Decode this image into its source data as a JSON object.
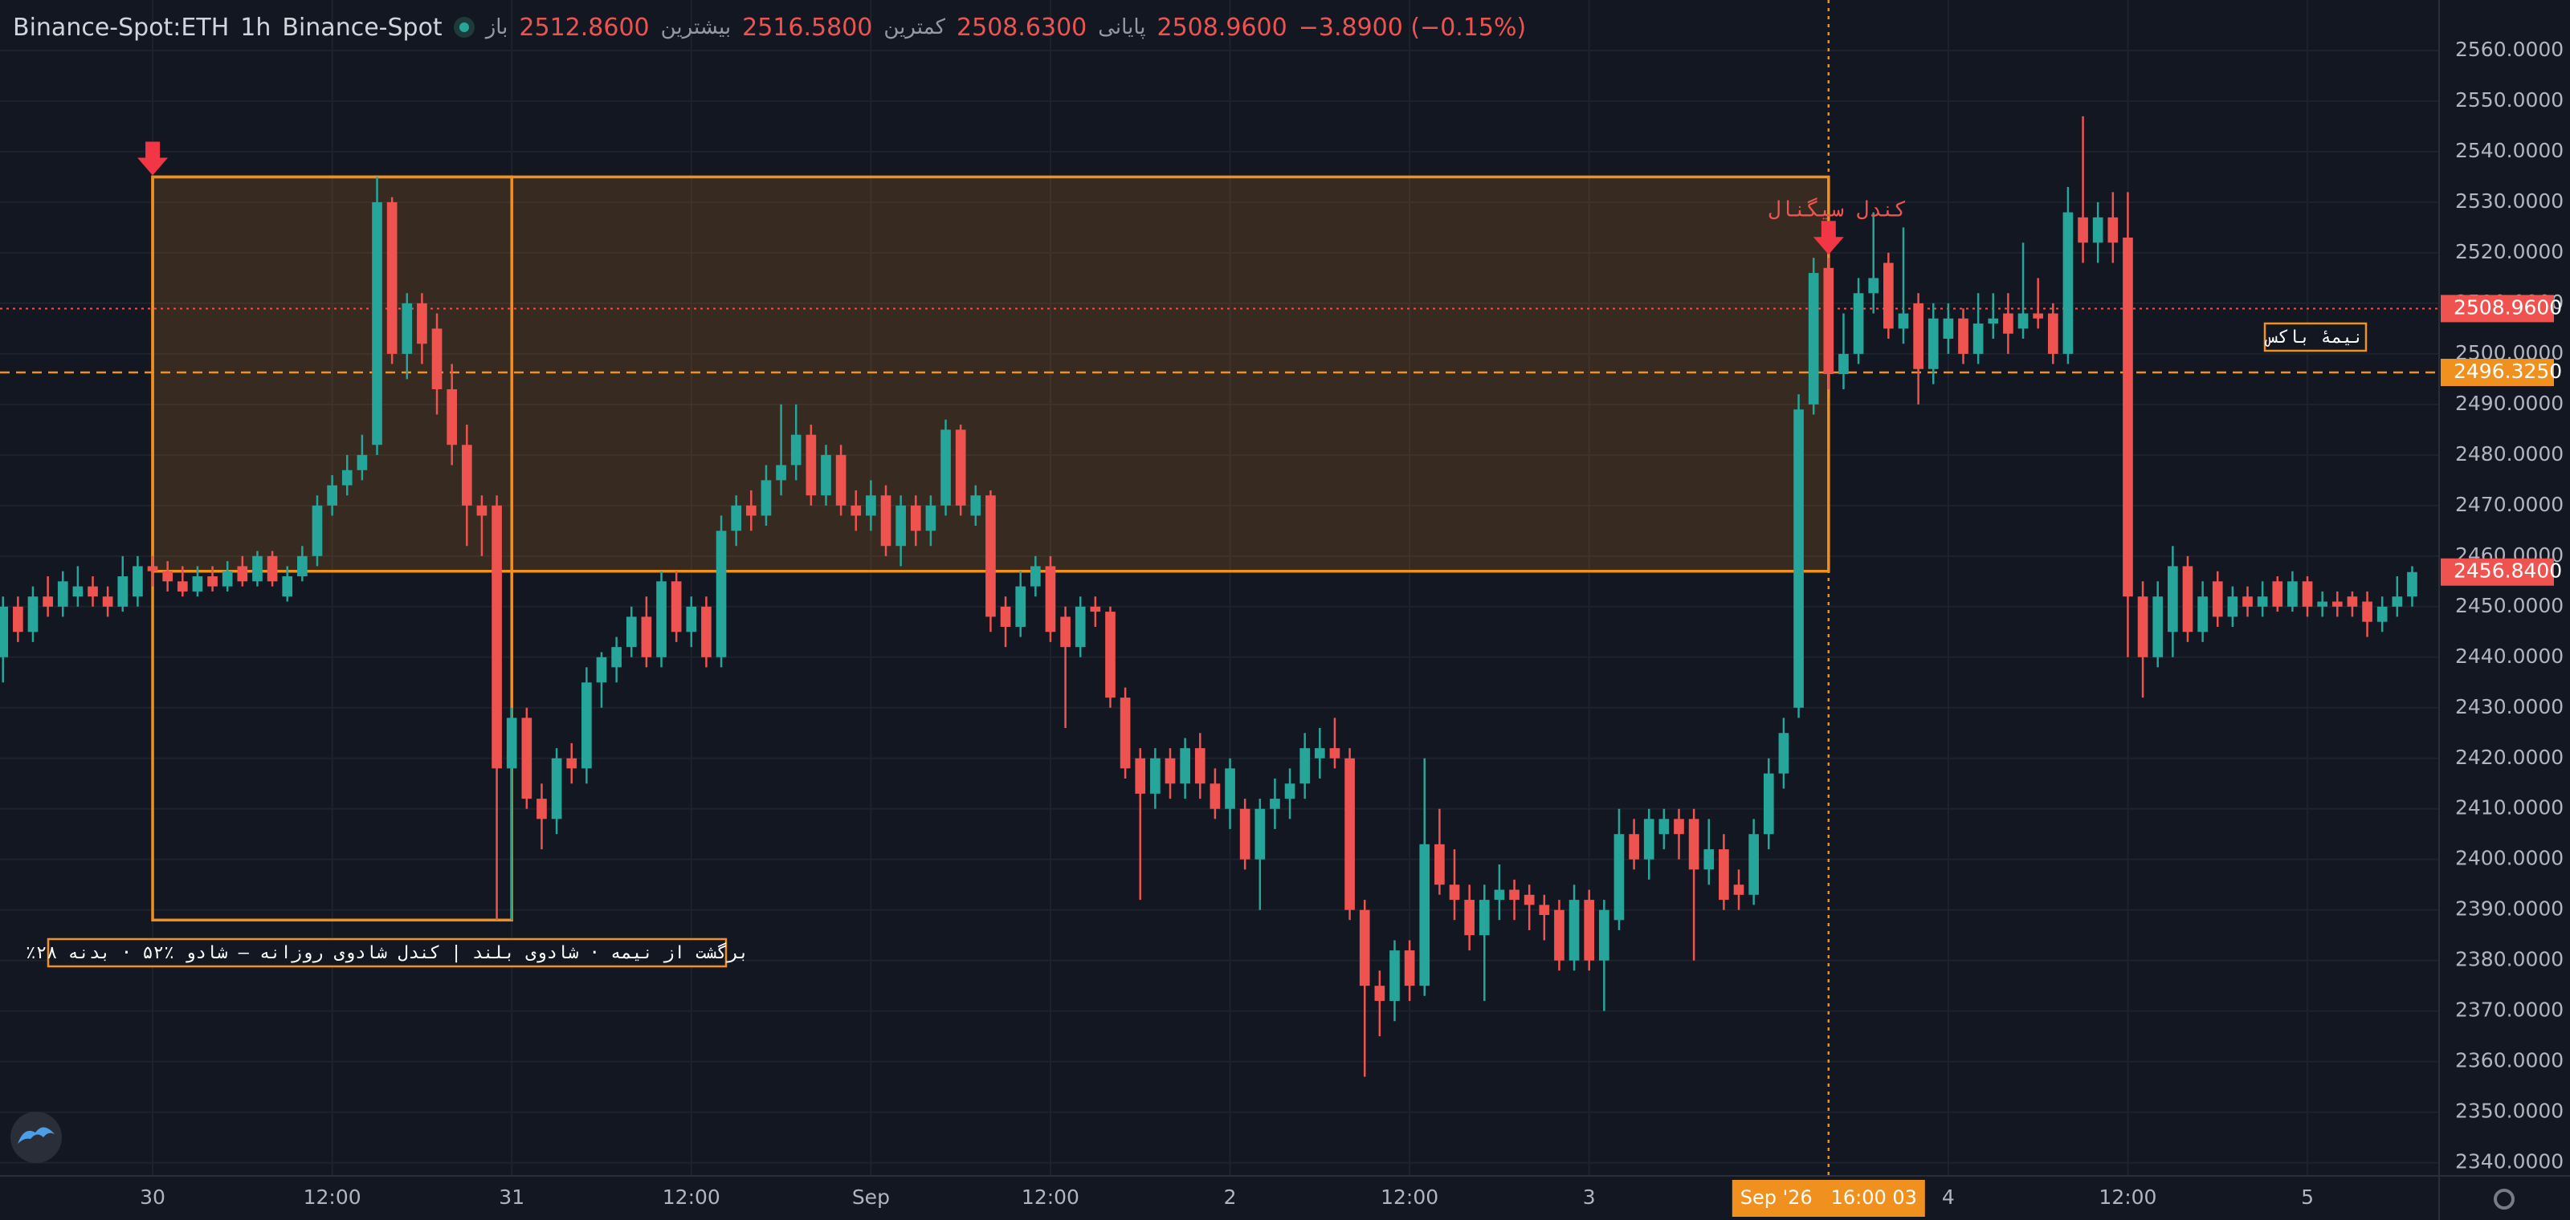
{
  "header": {
    "symbol": "Binance-Spot:ETH",
    "interval": "1h",
    "exchange": "Binance-Spot",
    "open_label": "باز",
    "open": "2512.8600",
    "high_label": "بیشترین",
    "high": "2516.5800",
    "low_label": "کمترین",
    "low": "2508.6300",
    "close_label": "پایانی",
    "close": "2508.9600",
    "change": "−3.8900 (−0.15%)"
  },
  "chart_data": {
    "type": "candlestick",
    "up_color": "#26a69a",
    "down_color": "#ef5350",
    "candles": [
      [
        2440,
        2452,
        2435,
        2450
      ],
      [
        2450,
        2452,
        2443,
        2445
      ],
      [
        2445,
        2454,
        2443,
        2452
      ],
      [
        2452,
        2456,
        2448,
        2450
      ],
      [
        2450,
        2457,
        2448,
        2455
      ],
      [
        2452,
        2458,
        2450,
        2454
      ],
      [
        2454,
        2456,
        2450,
        2452
      ],
      [
        2452,
        2454,
        2448,
        2450
      ],
      [
        2450,
        2460,
        2449,
        2456
      ],
      [
        2452,
        2460,
        2450,
        2458
      ],
      [
        2458,
        2460,
        2454,
        2457
      ],
      [
        2457,
        2459,
        2453,
        2455
      ],
      [
        2455,
        2458,
        2452,
        2453
      ],
      [
        2453,
        2458,
        2452,
        2456
      ],
      [
        2456,
        2458,
        2453,
        2454
      ],
      [
        2454,
        2459,
        2453,
        2457
      ],
      [
        2458,
        2460,
        2454,
        2455
      ],
      [
        2455,
        2461,
        2454,
        2460
      ],
      [
        2460,
        2461,
        2454,
        2455
      ],
      [
        2452,
        2458,
        2451,
        2456
      ],
      [
        2456,
        2462,
        2455,
        2460
      ],
      [
        2460,
        2472,
        2458,
        2470
      ],
      [
        2470,
        2476,
        2468,
        2474
      ],
      [
        2474,
        2480,
        2472,
        2477
      ],
      [
        2477,
        2484,
        2475,
        2480
      ],
      [
        2482,
        2535,
        2480,
        2530
      ],
      [
        2530,
        2531,
        2498,
        2500
      ],
      [
        2500,
        2512,
        2495,
        2510
      ],
      [
        2510,
        2512,
        2498,
        2502
      ],
      [
        2505,
        2508,
        2488,
        2493
      ],
      [
        2493,
        2498,
        2478,
        2482
      ],
      [
        2482,
        2486,
        2462,
        2470
      ],
      [
        2470,
        2472,
        2460,
        2468
      ],
      [
        2470,
        2472,
        2388,
        2418
      ],
      [
        2418,
        2430,
        2388,
        2428
      ],
      [
        2428,
        2430,
        2410,
        2412
      ],
      [
        2412,
        2415,
        2402,
        2408
      ],
      [
        2408,
        2422,
        2405,
        2420
      ],
      [
        2420,
        2423,
        2415,
        2418
      ],
      [
        2418,
        2438,
        2415,
        2435
      ],
      [
        2435,
        2441,
        2430,
        2440
      ],
      [
        2438,
        2444,
        2435,
        2442
      ],
      [
        2442,
        2450,
        2440,
        2448
      ],
      [
        2448,
        2452,
        2438,
        2440
      ],
      [
        2440,
        2457,
        2438,
        2455
      ],
      [
        2455,
        2457,
        2443,
        2445
      ],
      [
        2445,
        2452,
        2442,
        2450
      ],
      [
        2450,
        2452,
        2438,
        2440
      ],
      [
        2440,
        2468,
        2438,
        2465
      ],
      [
        2465,
        2472,
        2462,
        2470
      ],
      [
        2470,
        2473,
        2465,
        2468
      ],
      [
        2468,
        2478,
        2466,
        2475
      ],
      [
        2475,
        2490,
        2472,
        2478
      ],
      [
        2478,
        2490,
        2475,
        2484
      ],
      [
        2484,
        2486,
        2470,
        2472
      ],
      [
        2472,
        2482,
        2470,
        2480
      ],
      [
        2480,
        2482,
        2468,
        2470
      ],
      [
        2470,
        2473,
        2465,
        2468
      ],
      [
        2468,
        2475,
        2465,
        2472
      ],
      [
        2472,
        2474,
        2460,
        2462
      ],
      [
        2462,
        2472,
        2458,
        2470
      ],
      [
        2470,
        2472,
        2462,
        2465
      ],
      [
        2465,
        2472,
        2462,
        2470
      ],
      [
        2470,
        2487,
        2468,
        2485
      ],
      [
        2485,
        2486,
        2468,
        2470
      ],
      [
        2468,
        2474,
        2466,
        2472
      ],
      [
        2472,
        2473,
        2445,
        2448
      ],
      [
        2450,
        2452,
        2442,
        2446
      ],
      [
        2446,
        2457,
        2444,
        2454
      ],
      [
        2454,
        2460,
        2452,
        2458
      ],
      [
        2458,
        2460,
        2443,
        2445
      ],
      [
        2448,
        2450,
        2426,
        2442
      ],
      [
        2442,
        2452,
        2440,
        2450
      ],
      [
        2450,
        2452,
        2446,
        2449
      ],
      [
        2449,
        2450,
        2430,
        2432
      ],
      [
        2432,
        2434,
        2416,
        2418
      ],
      [
        2420,
        2422,
        2392,
        2413
      ],
      [
        2413,
        2422,
        2410,
        2420
      ],
      [
        2420,
        2422,
        2412,
        2415
      ],
      [
        2415,
        2424,
        2412,
        2422
      ],
      [
        2422,
        2425,
        2412,
        2415
      ],
      [
        2415,
        2418,
        2408,
        2410
      ],
      [
        2410,
        2420,
        2406,
        2418
      ],
      [
        2410,
        2412,
        2398,
        2400
      ],
      [
        2400,
        2412,
        2390,
        2410
      ],
      [
        2410,
        2416,
        2406,
        2412
      ],
      [
        2412,
        2418,
        2408,
        2415
      ],
      [
        2415,
        2425,
        2412,
        2422
      ],
      [
        2420,
        2426,
        2416,
        2422
      ],
      [
        2422,
        2428,
        2418,
        2420
      ],
      [
        2420,
        2422,
        2388,
        2390
      ],
      [
        2390,
        2392,
        2357,
        2375
      ],
      [
        2375,
        2378,
        2365,
        2372
      ],
      [
        2372,
        2384,
        2368,
        2382
      ],
      [
        2382,
        2384,
        2372,
        2375
      ],
      [
        2375,
        2420,
        2373,
        2403
      ],
      [
        2403,
        2410,
        2393,
        2395
      ],
      [
        2395,
        2402,
        2388,
        2392
      ],
      [
        2392,
        2395,
        2382,
        2385
      ],
      [
        2385,
        2395,
        2372,
        2392
      ],
      [
        2392,
        2399,
        2388,
        2394
      ],
      [
        2394,
        2396,
        2388,
        2392
      ],
      [
        2393,
        2395,
        2386,
        2391
      ],
      [
        2391,
        2393,
        2384,
        2389
      ],
      [
        2390,
        2392,
        2378,
        2380
      ],
      [
        2380,
        2395,
        2378,
        2392
      ],
      [
        2392,
        2394,
        2378,
        2380
      ],
      [
        2380,
        2392,
        2370,
        2390
      ],
      [
        2388,
        2410,
        2386,
        2405
      ],
      [
        2405,
        2408,
        2398,
        2400
      ],
      [
        2400,
        2410,
        2396,
        2408
      ],
      [
        2405,
        2410,
        2402,
        2408
      ],
      [
        2408,
        2410,
        2400,
        2405
      ],
      [
        2408,
        2410,
        2380,
        2398
      ],
      [
        2398,
        2408,
        2395,
        2402
      ],
      [
        2402,
        2405,
        2390,
        2392
      ],
      [
        2395,
        2398,
        2390,
        2393
      ],
      [
        2393,
        2408,
        2391,
        2405
      ],
      [
        2405,
        2420,
        2402,
        2417
      ],
      [
        2417,
        2428,
        2414,
        2425
      ],
      [
        2430,
        2492,
        2428,
        2489
      ],
      [
        2490,
        2519,
        2488,
        2516
      ],
      [
        2517,
        2519,
        2493,
        2496
      ],
      [
        2496,
        2508,
        2493,
        2500
      ],
      [
        2500,
        2515,
        2498,
        2512
      ],
      [
        2512,
        2528,
        2508,
        2515
      ],
      [
        2518,
        2520,
        2503,
        2505
      ],
      [
        2505,
        2525,
        2502,
        2508
      ],
      [
        2510,
        2512,
        2490,
        2497
      ],
      [
        2497,
        2510,
        2494,
        2507
      ],
      [
        2503,
        2510,
        2500,
        2507
      ],
      [
        2507,
        2509,
        2498,
        2500
      ],
      [
        2500,
        2512,
        2498,
        2506
      ],
      [
        2506,
        2512,
        2503,
        2507
      ],
      [
        2508,
        2512,
        2500,
        2504
      ],
      [
        2505,
        2522,
        2503,
        2508
      ],
      [
        2508,
        2515,
        2505,
        2507
      ],
      [
        2508,
        2510,
        2498,
        2500
      ],
      [
        2500,
        2533,
        2498,
        2528
      ],
      [
        2527,
        2547,
        2518,
        2522
      ],
      [
        2522,
        2530,
        2518,
        2527
      ],
      [
        2527,
        2532,
        2518,
        2522
      ],
      [
        2523,
        2532,
        2440,
        2452
      ],
      [
        2452,
        2455,
        2432,
        2440
      ],
      [
        2440,
        2455,
        2438,
        2452
      ],
      [
        2445,
        2462,
        2440,
        2458
      ],
      [
        2458,
        2460,
        2443,
        2445
      ],
      [
        2445,
        2455,
        2443,
        2452
      ],
      [
        2455,
        2457,
        2446,
        2448
      ],
      [
        2448,
        2454,
        2446,
        2452
      ],
      [
        2452,
        2454,
        2448,
        2450
      ],
      [
        2450,
        2455,
        2448,
        2452
      ],
      [
        2455,
        2456,
        2449,
        2450
      ],
      [
        2450,
        2457,
        2449,
        2455
      ],
      [
        2455,
        2456,
        2448,
        2450
      ],
      [
        2450,
        2453,
        2448,
        2451
      ],
      [
        2451,
        2453,
        2448,
        2450
      ],
      [
        2452,
        2453,
        2448,
        2450
      ],
      [
        2451,
        2453,
        2444,
        2447
      ],
      [
        2447,
        2452,
        2445,
        2450
      ],
      [
        2450,
        2456,
        2448,
        2452
      ],
      [
        2452,
        2458,
        2450,
        2456.84
      ]
    ],
    "xlim": [
      -0.2,
      162.8
    ],
    "xticks": [
      {
        "value": 10,
        "label": "30"
      },
      {
        "value": 22,
        "label": "12:00"
      },
      {
        "value": 34,
        "label": "31"
      },
      {
        "value": 46,
        "label": "12:00"
      },
      {
        "value": 58,
        "label": "Sep"
      },
      {
        "value": 70,
        "label": "12:00"
      },
      {
        "value": 82,
        "label": "2"
      },
      {
        "value": 94,
        "label": "12:00"
      },
      {
        "value": 106,
        "label": "3"
      },
      {
        "value": 130,
        "label": "4"
      },
      {
        "value": 142,
        "label": "12:00"
      },
      {
        "value": 154,
        "label": "5"
      }
    ],
    "ylim": [
      2337.4,
      2570
    ],
    "yticks": [
      {
        "value": 2340,
        "label": "2340.0000"
      },
      {
        "value": 2350,
        "label": "2350.0000"
      },
      {
        "value": 2360,
        "label": "2360.0000"
      },
      {
        "value": 2370,
        "label": "2370.0000"
      },
      {
        "value": 2380,
        "label": "2380.0000"
      },
      {
        "value": 2390,
        "label": "2390.0000"
      },
      {
        "value": 2400,
        "label": "2400.0000"
      },
      {
        "value": 2410,
        "label": "2410.0000"
      },
      {
        "value": 2420,
        "label": "2420.0000"
      },
      {
        "value": 2430,
        "label": "2430.0000"
      },
      {
        "value": 2440,
        "label": "2440.0000"
      },
      {
        "value": 2450,
        "label": "2450.0000"
      },
      {
        "value": 2460,
        "label": "2460.0000"
      },
      {
        "value": 2470,
        "label": "2470.0000"
      },
      {
        "value": 2480,
        "label": "2480.0000"
      },
      {
        "value": 2490,
        "label": "2490.0000"
      },
      {
        "value": 2500,
        "label": "2500.0000"
      },
      {
        "value": 2510,
        "label": "2510.0000"
      },
      {
        "value": 2520,
        "label": "2520.0000"
      },
      {
        "value": 2530,
        "label": "2530.0000"
      },
      {
        "value": 2540,
        "label": "2540.0000"
      },
      {
        "value": 2550,
        "label": "2550.0000"
      },
      {
        "value": 2560,
        "label": "2560.0000"
      }
    ],
    "grid": true,
    "box_color": "#f0901e",
    "boxes": [
      {
        "from": 10,
        "to": 122,
        "top": 2535,
        "bottom": 2457
      },
      {
        "from": 10,
        "to": 34,
        "top": 2535,
        "bottom": 2388
      }
    ],
    "half_line": {
      "value": 2496.325,
      "label": "2496.3250"
    },
    "crosshair": {
      "x": 122,
      "label": "Sep '26   16:00 03",
      "y": 2508.96,
      "y_label": "2508.9600"
    },
    "last_price": {
      "value": 2456.84,
      "label": "2456.8400"
    },
    "annotations": {
      "signal": "کندل سیگنال",
      "half_box": "نیمهٔ باکس",
      "note": "٪برگشت از نیمه · شادوی بلند | کندل شادوی روزانه — شادو ٪۵۲ · بدنه ۲۸"
    }
  }
}
